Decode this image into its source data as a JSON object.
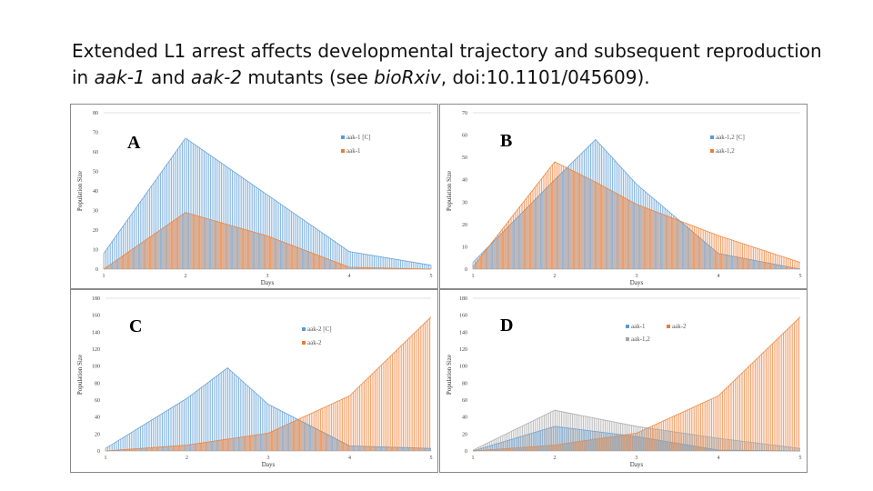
{
  "slide": {
    "title_line1": "Extended L1 arrest affects developmental trajectory and subsequent reproduction",
    "title_line2_prefix": "in ",
    "title_gene1": "aak-1",
    "title_and": " and ",
    "title_gene2": "aak-2",
    "title_mid": " mutants (see ",
    "title_journal": "bioRxiv",
    "title_suffix": ", doi:10.1101/045609)."
  },
  "colors": {
    "blue": "#5b9bd5",
    "orange": "#ed7d31",
    "gray": "#a5a5a5"
  },
  "chart_data": [
    {
      "type": "area",
      "panel": "A",
      "xlabel": "Days",
      "ylabel": "Population Size",
      "ylim": [
        0,
        80
      ],
      "yticks": [
        0,
        10,
        20,
        30,
        40,
        50,
        60,
        70,
        80
      ],
      "xticks": [
        1,
        2,
        3,
        4,
        5
      ],
      "legend_placement": "top-right",
      "x": [
        1,
        2,
        3,
        4,
        5
      ],
      "series": [
        {
          "name": "aak-1 [C]",
          "color": "blue",
          "values": [
            8,
            67,
            38,
            9,
            2
          ]
        },
        {
          "name": "aak-1",
          "color": "orange",
          "values": [
            0,
            29,
            17,
            1,
            0
          ]
        }
      ]
    },
    {
      "type": "area",
      "panel": "B",
      "xlabel": "Days",
      "ylabel": "Population Size",
      "ylim": [
        0,
        70
      ],
      "yticks": [
        0,
        10,
        20,
        30,
        40,
        50,
        60,
        70
      ],
      "xticks": [
        1,
        2,
        3,
        4,
        5
      ],
      "legend_placement": "top-right",
      "x": [
        1,
        2,
        2.5,
        3,
        4,
        5
      ],
      "series": [
        {
          "name": "aak-1,2 [C]",
          "color": "blue",
          "values": [
            3,
            40,
            58,
            38,
            7,
            0
          ]
        },
        {
          "name": "aak-1,2",
          "color": "orange",
          "values": [
            1,
            48,
            39,
            29,
            15,
            3
          ]
        }
      ]
    },
    {
      "type": "area",
      "panel": "C",
      "xlabel": "Days",
      "ylabel": "Population Size",
      "ylim": [
        0,
        180
      ],
      "yticks": [
        0,
        20,
        40,
        60,
        80,
        100,
        120,
        140,
        160,
        180
      ],
      "xticks": [
        1,
        2,
        3,
        4,
        5
      ],
      "legend_placement": "top-right",
      "x": [
        1,
        2,
        2.5,
        3,
        4,
        5
      ],
      "series": [
        {
          "name": "aak-2 [C]",
          "color": "blue",
          "values": [
            3,
            62,
            98,
            55,
            6,
            3
          ]
        },
        {
          "name": "aak-2",
          "color": "orange",
          "values": [
            0,
            7,
            14,
            21,
            65,
            158
          ]
        }
      ]
    },
    {
      "type": "area",
      "panel": "D",
      "xlabel": "Days",
      "ylabel": "Population Size",
      "ylim": [
        0,
        180
      ],
      "yticks": [
        0,
        20,
        40,
        60,
        80,
        100,
        120,
        140,
        160,
        180
      ],
      "xticks": [
        1,
        2,
        3,
        4,
        5
      ],
      "legend_placement": "top-right",
      "x": [
        1,
        2,
        3,
        4,
        5
      ],
      "series": [
        {
          "name": "aak-1",
          "color": "blue",
          "values": [
            0,
            29,
            17,
            1,
            0
          ]
        },
        {
          "name": "aak-2",
          "color": "orange",
          "values": [
            0,
            7,
            21,
            65,
            158
          ]
        },
        {
          "name": "aak-1,2",
          "color": "gray",
          "values": [
            1,
            48,
            29,
            15,
            3
          ]
        }
      ]
    }
  ]
}
